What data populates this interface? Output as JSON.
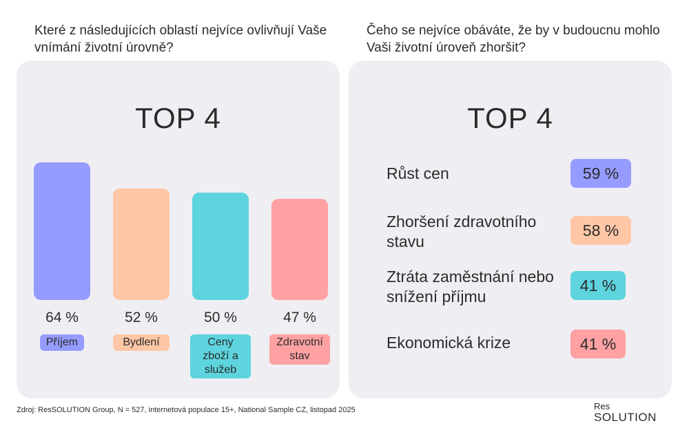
{
  "left": {
    "question": "Které z následujících oblastí nejvíce ovlivňují Vaše vnímání životní úrovně?",
    "top_title": "TOP 4"
  },
  "right": {
    "question": "Čeho se nejvíce obáváte, že by v budoucnu mohlo Vaši životní úroveň zhoršit?",
    "top_title": "TOP 4"
  },
  "chart_data": [
    {
      "type": "bar",
      "title": "TOP 4",
      "categories": [
        "Příjem",
        "Bydlení",
        "Ceny zboží a služeb",
        "Zdravotní stav"
      ],
      "values": [
        64,
        52,
        50,
        47
      ],
      "value_labels": [
        "64 %",
        "52 %",
        "50 %",
        "47 %"
      ],
      "colors": [
        "#969cff",
        "#ffc7a6",
        "#5dd4de",
        "#ffa1a3"
      ],
      "ylim": [
        0,
        100
      ],
      "grid": false
    },
    {
      "type": "table",
      "title": "TOP 4",
      "items": [
        {
          "label": "Růst cen",
          "value": 59,
          "value_label": "59 %",
          "color": "#969cff"
        },
        {
          "label": "Zhoršení zdravotního stavu",
          "value": 58,
          "value_label": "58 %",
          "color": "#ffc7a6"
        },
        {
          "label": "Ztráta zaměstnání nebo snížení příjmu",
          "value": 41,
          "value_label": "41 %",
          "color": "#5dd4de"
        },
        {
          "label": "Ekonomická krize",
          "value": 41,
          "value_label": "41 %",
          "color": "#ffa1a3"
        }
      ]
    }
  ],
  "footer": {
    "source": "Zdroj: ResSOLUTION Group, N = 527, internetová populace 15+, National Sample CZ, listopad 2025",
    "logo_top": "Res",
    "logo_bottom": "SOLUTION"
  }
}
